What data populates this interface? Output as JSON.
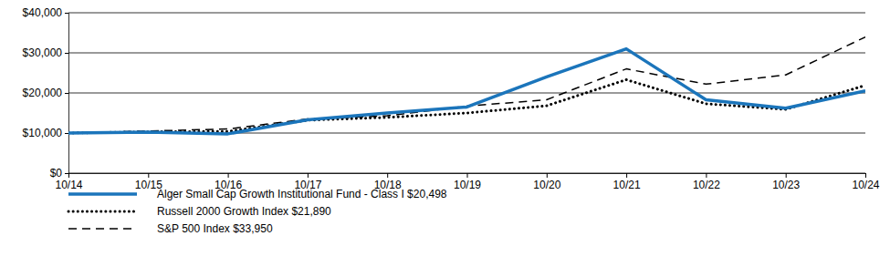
{
  "chart_data": {
    "type": "line",
    "categories": [
      "10/14",
      "10/15",
      "10/16",
      "10/17",
      "10/18",
      "10/19",
      "10/20",
      "10/21",
      "10/22",
      "10/23",
      "10/24"
    ],
    "series": [
      {
        "name": "Alger Small Cap Growth Institutional Fund - Class I $20,498",
        "color": "#1b75bb",
        "line_style": "solid",
        "values": [
          10000,
          10200,
          9800,
          13300,
          15000,
          16500,
          24000,
          31000,
          18300,
          16200,
          20498
        ]
      },
      {
        "name": "Russell 2000 Growth Index $21,890",
        "color": "#000000",
        "line_style": "dotted",
        "values": [
          10000,
          10300,
          10400,
          13200,
          13900,
          15000,
          16800,
          23300,
          17300,
          15900,
          21890
        ]
      },
      {
        "name": "S&P 500 Index $33,950",
        "color": "#000000",
        "line_style": "dashed",
        "values": [
          10000,
          10500,
          11000,
          13500,
          14300,
          16700,
          18300,
          26000,
          22200,
          24500,
          33950
        ]
      }
    ],
    "ylim": [
      0,
      40000
    ],
    "yticks": [
      {
        "value": 0,
        "label": "$0"
      },
      {
        "value": 10000,
        "label": "$10,000"
      },
      {
        "value": 20000,
        "label": "$20,000"
      },
      {
        "value": 30000,
        "label": "$30,000"
      },
      {
        "value": 40000,
        "label": "$40,000"
      }
    ],
    "grid": true,
    "legend": "bottom"
  }
}
